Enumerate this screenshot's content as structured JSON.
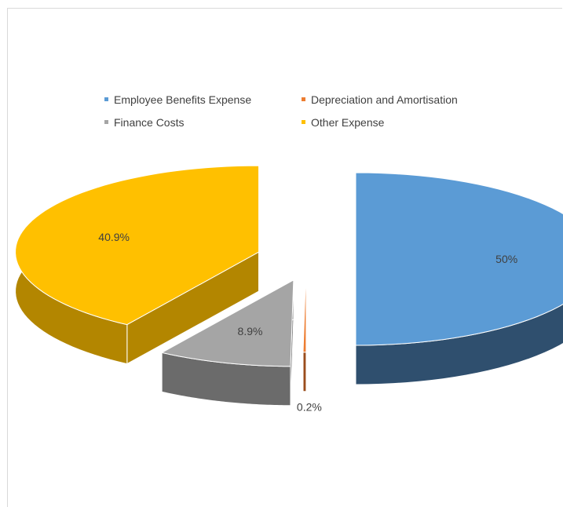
{
  "chart_data": {
    "type": "pie",
    "style": "3d-exploded",
    "legend_position": "top",
    "slices": [
      {
        "name": "Employee Benefits Expense",
        "value": 50,
        "label": "50%",
        "color": "#5b9bd5",
        "side_color": "#2f4f6e"
      },
      {
        "name": "Depreciation and Amortisation",
        "value": 0.2,
        "label": "0.2%",
        "color": "#ed7d31",
        "side_color": "#9a4d1c"
      },
      {
        "name": "Finance Costs",
        "value": 8.9,
        "label": "8.9%",
        "color": "#a5a5a5",
        "side_color": "#6b6b6b"
      },
      {
        "name": "Other Expense",
        "value": 40.9,
        "label": "40.9%",
        "color": "#ffc000",
        "side_color": "#b38600"
      }
    ]
  }
}
